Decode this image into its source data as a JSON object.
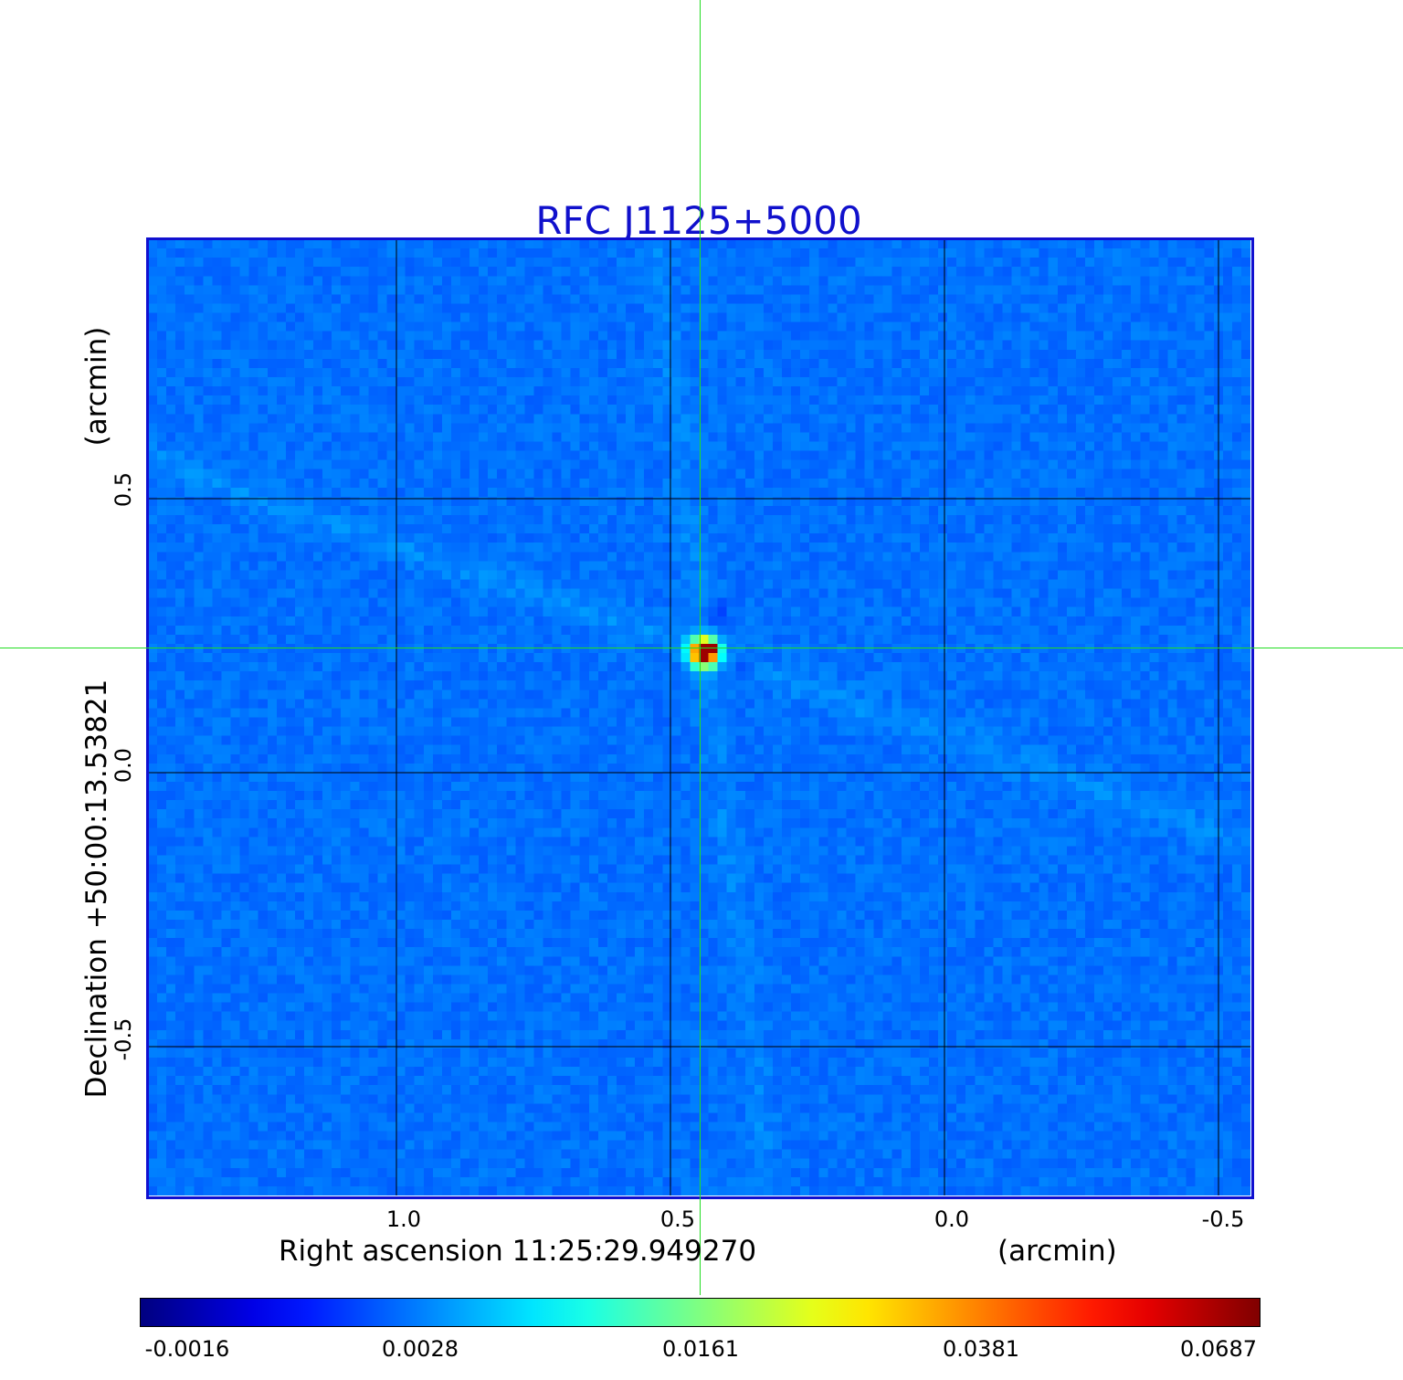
{
  "title": "RFC J1125+5000",
  "colors": {
    "title": "#1010cc",
    "frame": "#1010d0",
    "crosshair": "#22dd22",
    "grid": "#000000"
  },
  "image": {
    "description_colormap": "jet",
    "source_name": "RFC J1125+5000",
    "peak_position": {
      "ra_offset_arcmin": 0.45,
      "dec_offset_arcmin": 0.23
    }
  },
  "x_axis": {
    "label": "Right ascension  11:25:29.949270",
    "unit_label": "(arcmin)",
    "ticks": [
      {
        "value": 1.0,
        "label": "1.0"
      },
      {
        "value": 0.5,
        "label": "0.5"
      },
      {
        "value": 0.0,
        "label": "0.0"
      },
      {
        "value": -0.5,
        "label": "-0.5"
      }
    ]
  },
  "y_axis": {
    "label": "Declination  +50:00:13.53821",
    "unit_label": "(arcmin)",
    "ticks": [
      {
        "value": 0.5,
        "label": "0.5"
      },
      {
        "value": 0.0,
        "label": "0.0"
      },
      {
        "value": -0.5,
        "label": "-0.5"
      }
    ]
  },
  "colorbar": {
    "colormap": "jet",
    "ticks": [
      {
        "value": -0.0016,
        "label": "-0.0016"
      },
      {
        "value": 0.0028,
        "label": "0.0028"
      },
      {
        "value": 0.0161,
        "label": "0.0161"
      },
      {
        "value": 0.0381,
        "label": "0.0381"
      },
      {
        "value": 0.0687,
        "label": "0.0687"
      }
    ]
  }
}
